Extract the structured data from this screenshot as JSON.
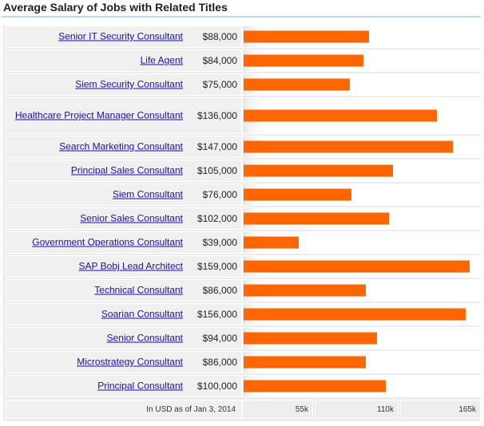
{
  "header": {
    "title": "Average Salary of Jobs with Related Titles"
  },
  "footer": {
    "note": "In USD as of Jan 3, 2014"
  },
  "colors": {
    "bar": "#ff6600",
    "link": "#1a0dab",
    "rule": "#bcd8ee"
  },
  "chart_data": {
    "type": "bar",
    "orientation": "horizontal",
    "title": "Average Salary of Jobs with Related Titles",
    "categories": [
      "Senior IT Security Consultant",
      "Life Agent",
      "Siem Security Consultant",
      "Healthcare Project Manager Consultant",
      "Search Marketing Consultant",
      "Principal Sales Consultant",
      "Siem Consultant",
      "Senior Sales Consultant",
      "Government Operations Consultant",
      "SAP Bobj Lead Architect",
      "Technical Consultant",
      "Soarian Consultant",
      "Senior Consultant",
      "Microstrategy Consultant",
      "Principal Consultant"
    ],
    "values": [
      88000,
      84000,
      75000,
      136000,
      147000,
      105000,
      76000,
      102000,
      39000,
      159000,
      86000,
      156000,
      94000,
      86000,
      100000
    ],
    "value_labels": [
      "$88,000",
      "$84,000",
      "$75,000",
      "$136,000",
      "$147,000",
      "$105,000",
      "$76,000",
      "$102,000",
      "$39,000",
      "$159,000",
      "$86,000",
      "$156,000",
      "$94,000",
      "$86,000",
      "$100,000"
    ],
    "ticks": [
      55000,
      110000,
      165000
    ],
    "tick_labels": [
      "55k",
      "110k",
      "165k"
    ],
    "xlim": [
      0,
      165000
    ],
    "xlabel": "",
    "ylabel": "",
    "grid": false,
    "legend": "none"
  }
}
